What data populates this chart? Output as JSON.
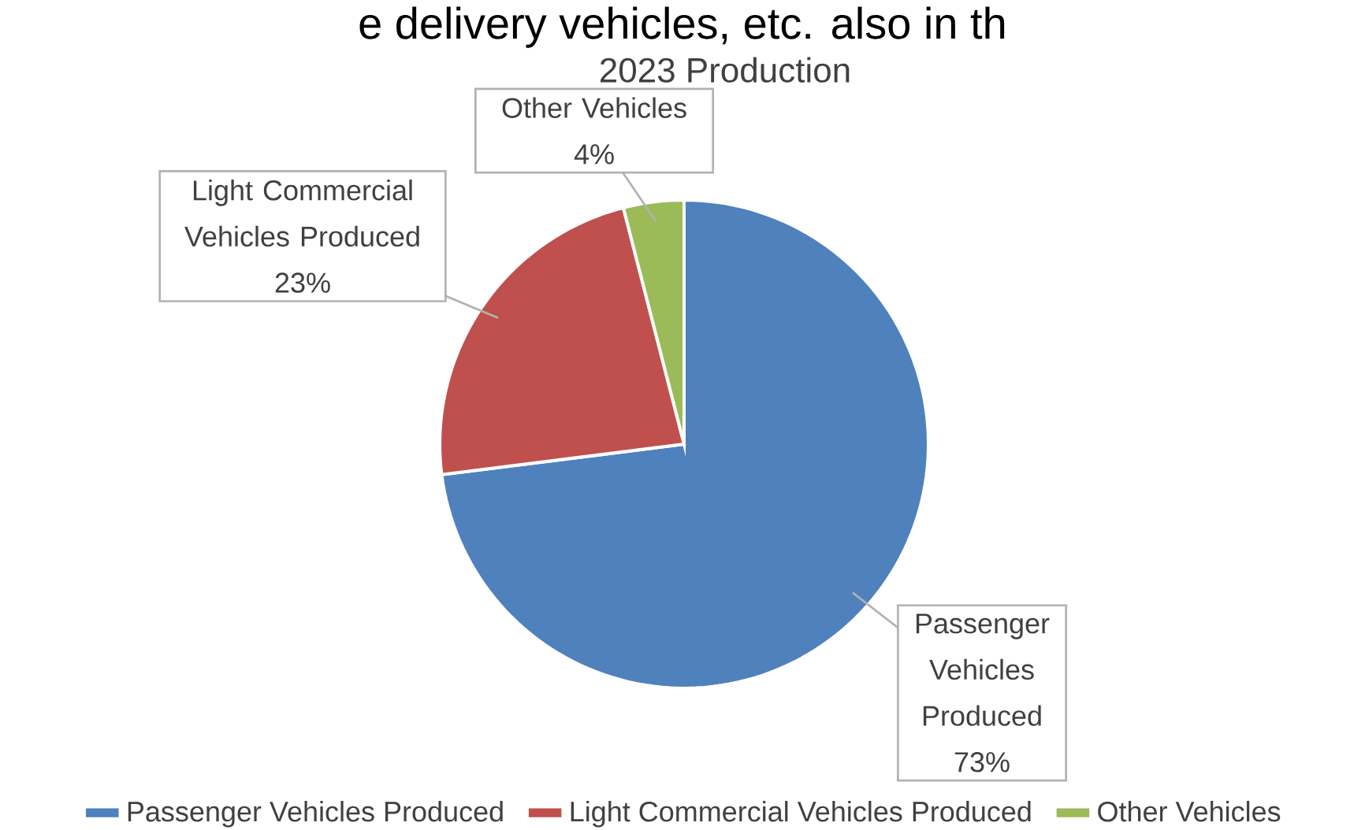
{
  "chart_data": {
    "type": "pie",
    "title": "2023 Production",
    "categories": [
      "Passenger Vehicles Produced",
      "Light Commercial Vehicles Produced",
      "Other Vehicles"
    ],
    "values": [
      73,
      23,
      4
    ],
    "colors": [
      "#4f81bd",
      "#c0504d",
      "#9bbb59"
    ],
    "value_labels": [
      "73%",
      "23%",
      "4%"
    ],
    "legend": "bottom",
    "annotations": [
      "e delivery vehicles, etc. also in th"
    ]
  }
}
